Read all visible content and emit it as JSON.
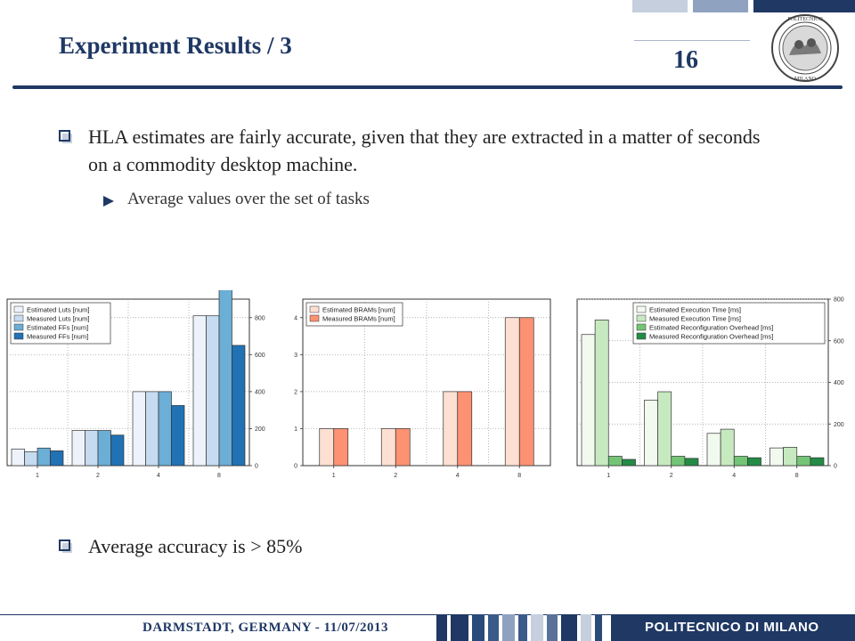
{
  "slide": {
    "title": "Experiment Results / 3",
    "page_number": "16",
    "bullet1": "HLA estimates are fairly accurate, given that they are extracted in a matter of seconds on a commodity desktop machine.",
    "sub_bullet": "Average values over the set of tasks",
    "bullet2": "Average accuracy is > 85%",
    "footer": "DARMSTADT, GERMANY - 11/07/2013",
    "brand": "POLITECNICO DI MILANO",
    "logo_text": "POLITECNICO · MILANO"
  },
  "colors": {
    "navy": "#1f3864"
  },
  "chart_data": [
    {
      "type": "bar",
      "categories": [
        "1",
        "2",
        "4",
        "8"
      ],
      "series": [
        {
          "name": "Estimated Luts [num]",
          "values": [
            90,
            190,
            400,
            810
          ],
          "color": "#eef3fb"
        },
        {
          "name": "Measured Luts [num]",
          "values": [
            75,
            190,
            400,
            810
          ],
          "color": "#c6dbef"
        },
        {
          "name": "Estimated FFs [num]",
          "values": [
            95,
            190,
            400,
            950
          ],
          "color": "#6baed6"
        },
        {
          "name": "Measured FFs [num]",
          "values": [
            80,
            165,
            325,
            650
          ],
          "color": "#2171b5"
        }
      ],
      "ylim": [
        0,
        900
      ],
      "yticks": [
        0,
        200,
        400,
        600,
        800
      ],
      "yaxis_side": "right",
      "grid": true,
      "legend": "top-left"
    },
    {
      "type": "bar",
      "categories": [
        "1",
        "2",
        "4",
        "8"
      ],
      "series": [
        {
          "name": "Estimated BRAMs [num]",
          "values": [
            1,
            1,
            2,
            4
          ],
          "color": "#fde0d2"
        },
        {
          "name": "Measured BRAMs [num]",
          "values": [
            1,
            1,
            2,
            4
          ],
          "color": "#fc9272"
        }
      ],
      "ylim": [
        0,
        4.5
      ],
      "yticks": [
        0,
        1,
        2,
        3,
        4
      ],
      "yaxis_side": "left",
      "grid": true,
      "legend": "top-left"
    },
    {
      "type": "bar",
      "categories": [
        "1",
        "2",
        "4",
        "8"
      ],
      "series": [
        {
          "name": "Estimated Execution Time [ms]",
          "values": [
            630,
            315,
            155,
            85
          ],
          "color": "#f2faf0"
        },
        {
          "name": "Measured Execution Time [ms]",
          "values": [
            700,
            355,
            175,
            88
          ],
          "color": "#c7e9c0"
        },
        {
          "name": "Estimated Reconfiguration Overhead [ms]",
          "values": [
            45,
            45,
            45,
            45
          ],
          "color": "#74c476"
        },
        {
          "name": "Measured Reconfiguration Overhead [ms]",
          "values": [
            30,
            35,
            38,
            38
          ],
          "color": "#238b45"
        }
      ],
      "ylim": [
        0,
        800
      ],
      "yticks": [
        0,
        200,
        400,
        600,
        800
      ],
      "yaxis_side": "right",
      "grid": true,
      "legend": "top-right"
    }
  ]
}
